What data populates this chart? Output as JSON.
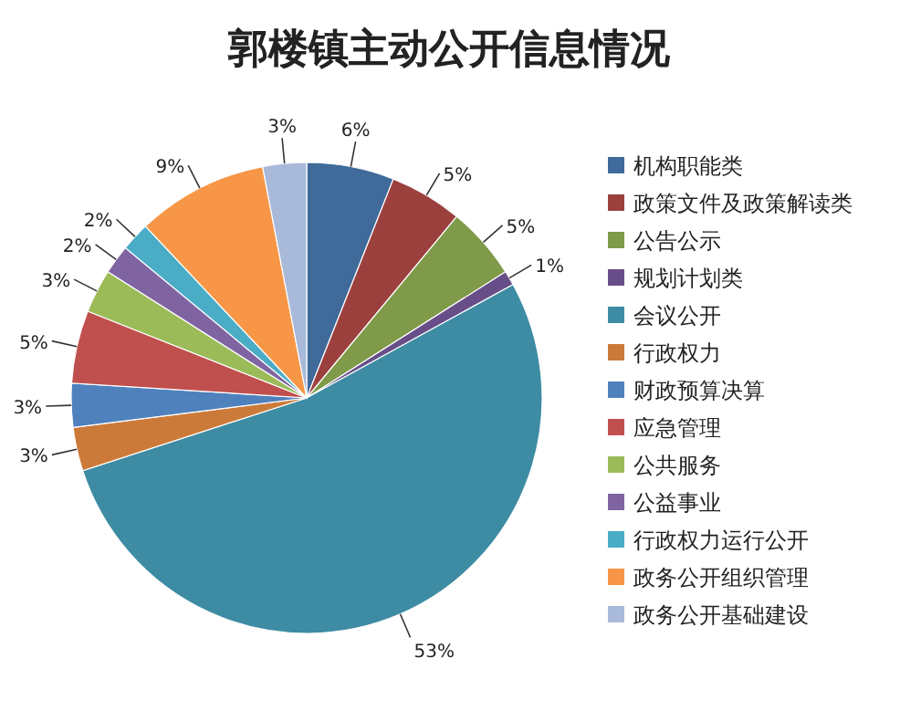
{
  "chart_data": {
    "type": "pie",
    "title": "郭楼镇主动公开信息情况",
    "categories": [
      "机构职能类",
      "政策文件及政策解读类",
      "公告公示",
      "规划计划类",
      "会议公开",
      "行政权力",
      "财政预算决算",
      "应急管理",
      "公共服务",
      "公益事业",
      "行政权力运行公开",
      "政务公开组织管理",
      "政务公开基础建设"
    ],
    "values": [
      6,
      5,
      5,
      1,
      53,
      3,
      3,
      5,
      3,
      2,
      2,
      9,
      3
    ],
    "colors": [
      "#3f6a9a",
      "#9c403e",
      "#7f9a48",
      "#684e89",
      "#3d8ca3",
      "#cc7a3a",
      "#4f81bd",
      "#c0504d",
      "#9bbb59",
      "#8064a2",
      "#4bacc6",
      "#f79646",
      "#a9b9d9"
    ],
    "value_labels": [
      "6%",
      "5%",
      "5%",
      "1%",
      "53%",
      "3%",
      "3%",
      "5%",
      "3%",
      "2%",
      "2%",
      "9%",
      "3%"
    ],
    "legend": "right"
  }
}
